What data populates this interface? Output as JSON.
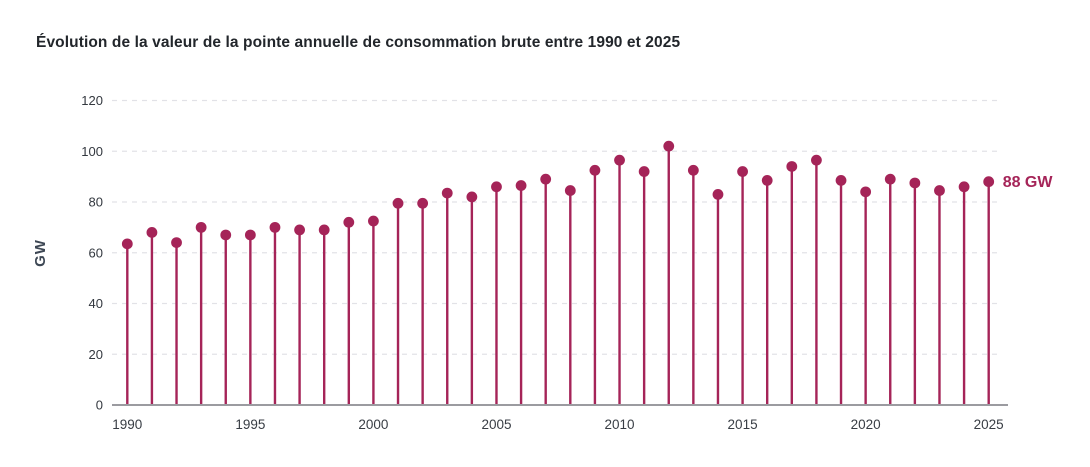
{
  "title": "Évolution de la valeur de la pointe annuelle de consommation brute entre 1990 et 2025",
  "colors": {
    "accent": "#a52458",
    "title_text": "#22262b",
    "axis_text": "#33383f",
    "ylabel_text": "#3d4754",
    "gridline": "#e2e2e7",
    "baseline": "#9b9ba0",
    "background": "#ffffff"
  },
  "chart_data": {
    "type": "bar",
    "variant": "lollipop-stem",
    "title": "Évolution de la valeur de la pointe annuelle de consommation brute entre 1990 et 2025",
    "x": [
      1990,
      1991,
      1992,
      1993,
      1994,
      1995,
      1996,
      1997,
      1998,
      1999,
      2000,
      2001,
      2002,
      2003,
      2004,
      2005,
      2006,
      2007,
      2008,
      2009,
      2010,
      2011,
      2012,
      2013,
      2014,
      2015,
      2016,
      2017,
      2018,
      2019,
      2020,
      2021,
      2022,
      2023,
      2024,
      2025
    ],
    "values": [
      63.5,
      68,
      64,
      70,
      67,
      67,
      70,
      69,
      69,
      72,
      72.5,
      79.5,
      79.5,
      83.5,
      82,
      86,
      86.5,
      89,
      84.5,
      92.5,
      96.5,
      92,
      102,
      92.5,
      83,
      92,
      88.5,
      94,
      96.5,
      88.5,
      84,
      89,
      87.5,
      84.5,
      86,
      88
    ],
    "xlabel": "",
    "ylabel": "GW",
    "ylim": [
      0,
      120
    ],
    "yticks": [
      0,
      20,
      40,
      60,
      80,
      100,
      120
    ],
    "xticks": [
      1990,
      1995,
      2000,
      2005,
      2010,
      2015,
      2020,
      2025
    ],
    "grid": "horizontal-dashed",
    "legend": "none",
    "annotation": {
      "x": 2025,
      "value": 88,
      "label": "88 GW"
    },
    "point_color": "#a52458",
    "unit": "GW"
  }
}
